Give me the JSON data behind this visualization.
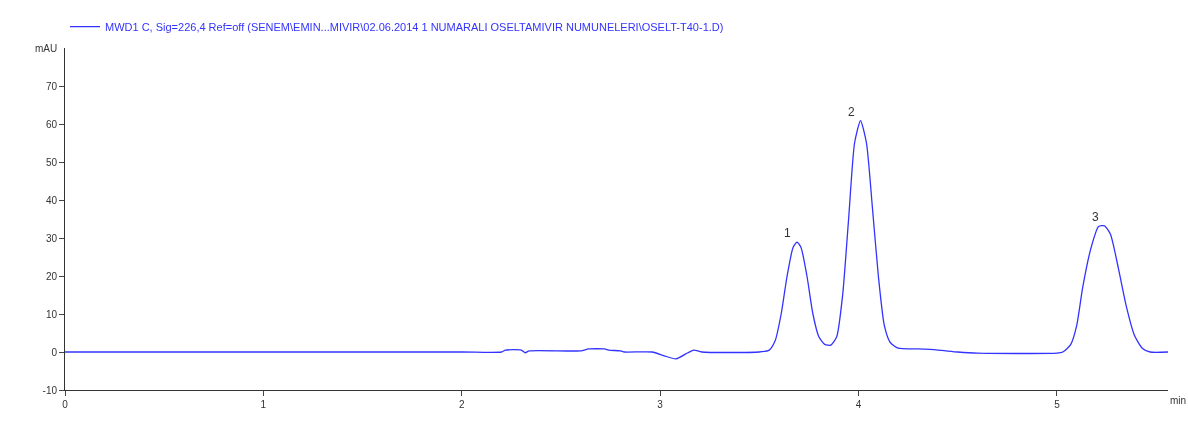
{
  "chart_data": {
    "type": "line",
    "x": [
      0,
      1,
      2,
      2.2,
      2.22,
      2.3,
      2.32,
      2.34,
      2.6,
      2.64,
      2.72,
      2.74,
      2.8,
      2.82,
      2.96,
      3.02,
      3.08,
      3.14,
      3.17,
      3.21,
      3.5,
      3.55,
      3.58,
      3.61,
      3.64,
      3.67,
      3.69,
      3.71,
      3.74,
      3.77,
      3.8,
      3.83,
      3.86,
      3.89,
      3.92,
      3.95,
      3.98,
      4.01,
      4.04,
      4.07,
      4.1,
      4.13,
      4.16,
      4.2,
      4.3,
      4.4,
      4.5,
      4.6,
      5.0,
      5.03,
      5.07,
      5.1,
      5.13,
      5.17,
      5.21,
      5.24,
      5.27,
      5.31,
      5.35,
      5.39,
      5.43,
      5.47,
      5.56
    ],
    "series": [
      {
        "name": "MWD1 C, Sig=226,4 Ref=off (SENEM\\EMIN...MIVIR\\02.06.2014 1 NUMARALI OSELTAMIVIR NUMUNELERI\\OSELT-T40-1.D)",
        "color": "#3333ff",
        "values": [
          0,
          0,
          0,
          0,
          0.5,
          0.5,
          -0.2,
          0.3,
          0.3,
          0.8,
          0.8,
          0.5,
          0.3,
          0,
          0,
          -1,
          -1.8,
          -0.2,
          0.5,
          0,
          0,
          0.5,
          3,
          10,
          20,
          27.5,
          28.9,
          27.5,
          20,
          10,
          4,
          2,
          1.8,
          4,
          15,
          35,
          55,
          60.9,
          55,
          38,
          20,
          7,
          2.5,
          1,
          0.8,
          0.5,
          0,
          -0.3,
          -0.3,
          0,
          2,
          7,
          17,
          27,
          33,
          33.2,
          31,
          22,
          12,
          4.5,
          1,
          0,
          0
        ]
      }
    ],
    "xlabel": "min",
    "ylabel": "mAU",
    "xlim": [
      0,
      5.56
    ],
    "ylim": [
      -10,
      80
    ],
    "xticks": [
      0,
      1,
      2,
      3,
      4,
      5
    ],
    "yticks": [
      -10,
      0,
      10,
      20,
      30,
      40,
      50,
      60,
      70
    ],
    "annotations": [
      {
        "text": "1",
        "x": 3.69,
        "y": 28.9
      },
      {
        "text": "2",
        "x": 4.01,
        "y": 60.9
      },
      {
        "text": "3",
        "x": 5.24,
        "y": 33.2
      }
    ],
    "legend": "top left",
    "marker": "none",
    "line_style": "solid"
  }
}
